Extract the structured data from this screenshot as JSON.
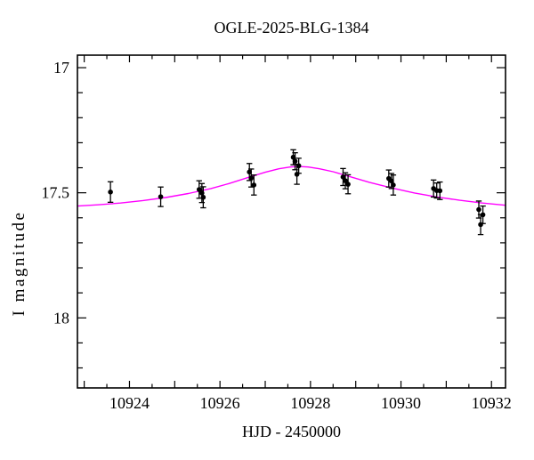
{
  "title": "OGLE-2025-BLG-1384",
  "chart_data": {
    "type": "scatter",
    "title": "OGLE-2025-BLG-1384",
    "xlabel": "HJD - 2450000",
    "ylabel": "I magnitude",
    "xlim": [
      10922.85,
      10932.31
    ],
    "ylim_top_to_bottom": [
      16.95,
      18.28
    ],
    "y_axis_inverted": true,
    "grid": false,
    "legend": "none",
    "colors": {
      "points": "#000000",
      "model_curve": "#ff00ff",
      "axes": "#000000",
      "background": "#ffffff"
    },
    "x_ticks": {
      "minor_step": 0.5,
      "major_step": 1,
      "labeled": [
        {
          "value": 10924,
          "label": "10924"
        },
        {
          "value": 10926,
          "label": "10926"
        },
        {
          "value": 10928,
          "label": "10928"
        },
        {
          "value": 10930,
          "label": "10930"
        },
        {
          "value": 10932,
          "label": "10932"
        }
      ]
    },
    "y_ticks": {
      "minor_step": 0.1,
      "labeled": [
        {
          "value": 17,
          "label": "17"
        },
        {
          "value": 17.5,
          "label": "17.5"
        },
        {
          "value": 18,
          "label": "18"
        }
      ]
    },
    "series": [
      {
        "name": "photometry",
        "kind": "scatter_with_errorbars",
        "marker": "filled-circle",
        "points_t_mag_err": [
          [
            10923.58,
            17.497,
            0.041
          ],
          [
            10924.69,
            17.516,
            0.039
          ],
          [
            10925.54,
            17.487,
            0.035
          ],
          [
            10925.6,
            17.501,
            0.038
          ],
          [
            10925.63,
            17.518,
            0.042
          ],
          [
            10926.65,
            17.417,
            0.034
          ],
          [
            10926.69,
            17.441,
            0.036
          ],
          [
            10926.75,
            17.469,
            0.04
          ],
          [
            10927.62,
            17.358,
            0.03
          ],
          [
            10927.66,
            17.374,
            0.034
          ],
          [
            10927.74,
            17.392,
            0.03
          ],
          [
            10927.7,
            17.426,
            0.04
          ],
          [
            10928.72,
            17.437,
            0.034
          ],
          [
            10928.77,
            17.452,
            0.032
          ],
          [
            10928.83,
            17.466,
            0.038
          ],
          [
            10929.73,
            17.443,
            0.034
          ],
          [
            10929.79,
            17.453,
            0.03
          ],
          [
            10929.83,
            17.469,
            0.04
          ],
          [
            10930.72,
            17.483,
            0.034
          ],
          [
            10930.79,
            17.491,
            0.03
          ],
          [
            10930.86,
            17.492,
            0.035
          ],
          [
            10931.72,
            17.567,
            0.034
          ],
          [
            10931.81,
            17.588,
            0.035
          ],
          [
            10931.76,
            17.627,
            0.04
          ]
        ]
      },
      {
        "name": "model",
        "kind": "line",
        "points_t_mag": [
          [
            10922.85,
            17.553
          ],
          [
            10923.3,
            17.548
          ],
          [
            10923.8,
            17.541
          ],
          [
            10924.3,
            17.531
          ],
          [
            10924.8,
            17.519
          ],
          [
            10925.3,
            17.503
          ],
          [
            10925.8,
            17.483
          ],
          [
            10926.2,
            17.463
          ],
          [
            10926.6,
            17.44
          ],
          [
            10927.0,
            17.418
          ],
          [
            10927.3,
            17.404
          ],
          [
            10927.55,
            17.397
          ],
          [
            10927.73,
            17.395
          ],
          [
            10927.95,
            17.397
          ],
          [
            10928.2,
            17.404
          ],
          [
            10928.5,
            17.416
          ],
          [
            10928.9,
            17.437
          ],
          [
            10929.3,
            17.458
          ],
          [
            10929.8,
            17.481
          ],
          [
            10930.3,
            17.501
          ],
          [
            10930.8,
            17.517
          ],
          [
            10931.3,
            17.53
          ],
          [
            10931.8,
            17.541
          ],
          [
            10932.31,
            17.55
          ]
        ]
      }
    ]
  }
}
